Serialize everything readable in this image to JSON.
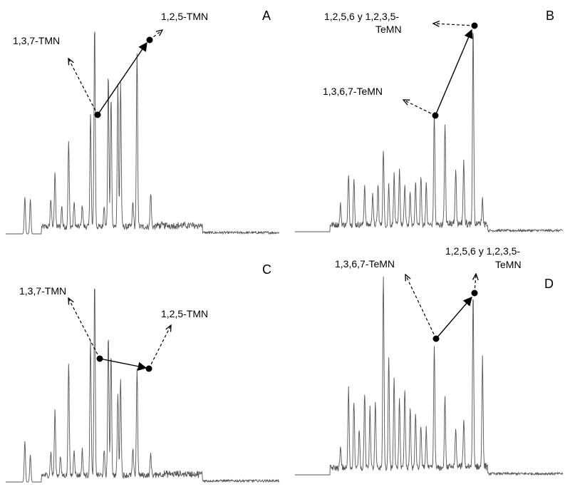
{
  "chart_data": [
    {
      "type": "line",
      "panel": "A",
      "peaks": [
        {
          "t": 0.07,
          "h": 0.18
        },
        {
          "t": 0.09,
          "h": 0.17
        },
        {
          "t": 0.165,
          "h": 0.14
        },
        {
          "t": 0.18,
          "h": 0.27
        },
        {
          "t": 0.205,
          "h": 0.1
        },
        {
          "t": 0.23,
          "h": 0.42
        },
        {
          "t": 0.25,
          "h": 0.12
        },
        {
          "t": 0.28,
          "h": 0.11
        },
        {
          "t": 0.31,
          "h": 0.55
        },
        {
          "t": 0.325,
          "h": 1.0
        },
        {
          "t": 0.36,
          "h": 0.11
        },
        {
          "t": 0.375,
          "h": 0.75
        },
        {
          "t": 0.385,
          "h": 0.64
        },
        {
          "t": 0.41,
          "h": 0.7
        },
        {
          "t": 0.42,
          "h": 0.71
        },
        {
          "t": 0.465,
          "h": 0.12
        },
        {
          "t": 0.48,
          "h": 0.85
        },
        {
          "t": 0.53,
          "h": 0.17
        }
      ],
      "annotations": [
        {
          "label": "1,3,7-TMN",
          "peak_index": 8
        },
        {
          "label": "1,2,5-TMN",
          "peak_index": 16
        }
      ]
    },
    {
      "type": "line",
      "panel": "B",
      "peaks": [
        {
          "t": 0.17,
          "h": 0.1
        },
        {
          "t": 0.2,
          "h": 0.26
        },
        {
          "t": 0.22,
          "h": 0.22
        },
        {
          "t": 0.26,
          "h": 0.2
        },
        {
          "t": 0.29,
          "h": 0.16
        },
        {
          "t": 0.31,
          "h": 0.2
        },
        {
          "t": 0.33,
          "h": 0.38
        },
        {
          "t": 0.35,
          "h": 0.2
        },
        {
          "t": 0.37,
          "h": 0.25
        },
        {
          "t": 0.39,
          "h": 0.28
        },
        {
          "t": 0.41,
          "h": 0.2
        },
        {
          "t": 0.43,
          "h": 0.15
        },
        {
          "t": 0.45,
          "h": 0.22
        },
        {
          "t": 0.47,
          "h": 0.24
        },
        {
          "t": 0.49,
          "h": 0.2
        },
        {
          "t": 0.52,
          "h": 0.57
        },
        {
          "t": 0.56,
          "h": 0.5
        },
        {
          "t": 0.6,
          "h": 0.28
        },
        {
          "t": 0.63,
          "h": 0.32
        },
        {
          "t": 0.665,
          "h": 1.0
        },
        {
          "t": 0.7,
          "h": 0.12
        }
      ],
      "annotations": [
        {
          "label": "1,3,6,7-TeMN",
          "peak_index": 15
        },
        {
          "label": "1,2,5,6 y 1,2,3,5-TeMN",
          "peak_index": 19
        }
      ]
    },
    {
      "type": "line",
      "panel": "C",
      "peaks": [
        {
          "t": 0.07,
          "h": 0.21
        },
        {
          "t": 0.09,
          "h": 0.14
        },
        {
          "t": 0.165,
          "h": 0.12
        },
        {
          "t": 0.18,
          "h": 0.33
        },
        {
          "t": 0.2,
          "h": 0.1
        },
        {
          "t": 0.23,
          "h": 0.59
        },
        {
          "t": 0.25,
          "h": 0.14
        },
        {
          "t": 0.28,
          "h": 0.13
        },
        {
          "t": 0.31,
          "h": 0.71
        },
        {
          "t": 0.325,
          "h": 1.0
        },
        {
          "t": 0.36,
          "h": 0.12
        },
        {
          "t": 0.375,
          "h": 0.73
        },
        {
          "t": 0.385,
          "h": 0.64
        },
        {
          "t": 0.41,
          "h": 0.42
        },
        {
          "t": 0.42,
          "h": 0.5
        },
        {
          "t": 0.465,
          "h": 0.13
        },
        {
          "t": 0.48,
          "h": 0.55
        },
        {
          "t": 0.53,
          "h": 0.11
        }
      ],
      "annotations": [
        {
          "label": "1,3,7-TMN",
          "peak_index": 8
        },
        {
          "label": "1,2,5-TMN",
          "peak_index": 16
        }
      ]
    },
    {
      "type": "line",
      "panel": "D",
      "peaks": [
        {
          "t": 0.17,
          "h": 0.1
        },
        {
          "t": 0.2,
          "h": 0.4
        },
        {
          "t": 0.22,
          "h": 0.34
        },
        {
          "t": 0.24,
          "h": 0.2
        },
        {
          "t": 0.26,
          "h": 0.38
        },
        {
          "t": 0.28,
          "h": 0.3
        },
        {
          "t": 0.3,
          "h": 0.33
        },
        {
          "t": 0.33,
          "h": 1.0
        },
        {
          "t": 0.35,
          "h": 0.57
        },
        {
          "t": 0.37,
          "h": 0.45
        },
        {
          "t": 0.39,
          "h": 0.35
        },
        {
          "t": 0.41,
          "h": 0.4
        },
        {
          "t": 0.43,
          "h": 0.3
        },
        {
          "t": 0.45,
          "h": 0.28
        },
        {
          "t": 0.47,
          "h": 0.22
        },
        {
          "t": 0.49,
          "h": 0.2
        },
        {
          "t": 0.52,
          "h": 0.62
        },
        {
          "t": 0.56,
          "h": 0.35
        },
        {
          "t": 0.6,
          "h": 0.2
        },
        {
          "t": 0.63,
          "h": 0.24
        },
        {
          "t": 0.665,
          "h": 0.88
        },
        {
          "t": 0.7,
          "h": 0.55
        }
      ],
      "annotations": [
        {
          "label": "1,3,6,7-TeMN",
          "peak_index": 16
        },
        {
          "label": "1,2,5,6 y 1,2,3,5-TeMN",
          "peak_index": 20
        }
      ]
    }
  ]
}
